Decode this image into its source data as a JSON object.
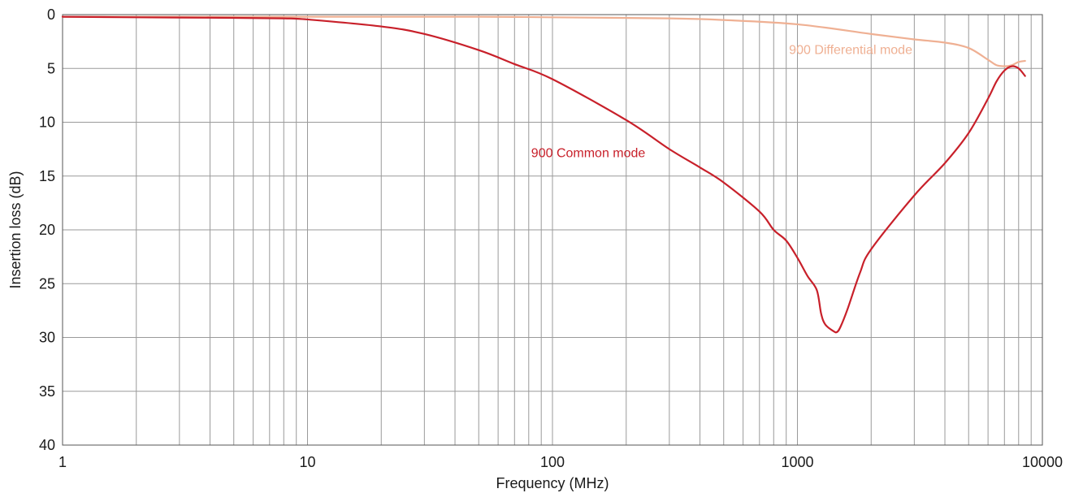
{
  "chart_data": {
    "type": "line",
    "title": "",
    "xlabel": "Frequency (MHz)",
    "ylabel": "Insertion loss (dB)",
    "x_scale": "log",
    "xlim": [
      1,
      10000
    ],
    "ylim": [
      0,
      40
    ],
    "y_inverted": true,
    "grid": true,
    "x_ticks": [
      1,
      10,
      100,
      1000,
      10000
    ],
    "x_tick_labels": [
      "1",
      "10",
      "100",
      "1000",
      "10000"
    ],
    "y_ticks": [
      0,
      5,
      10,
      15,
      20,
      25,
      30,
      35,
      40
    ],
    "y_tick_labels": [
      "0",
      "5",
      "10",
      "15",
      "20",
      "25",
      "30",
      "35",
      "40"
    ],
    "series": [
      {
        "name": "900 Common mode",
        "color": "#c8202a",
        "x": [
          1,
          2,
          5,
          8,
          10,
          20,
          30,
          50,
          70,
          100,
          200,
          300,
          400,
          500,
          700,
          800,
          900,
          1000,
          1100,
          1200,
          1250,
          1300,
          1400,
          1450,
          1500,
          1600,
          1800,
          2000,
          3000,
          4000,
          5000,
          6000,
          6500,
          7000,
          7500,
          8000,
          8500
        ],
        "y": [
          0.2,
          0.25,
          0.3,
          0.35,
          0.45,
          1.1,
          1.8,
          3.3,
          4.6,
          6.0,
          9.8,
          12.5,
          14.2,
          15.6,
          18.3,
          20.0,
          21.0,
          22.6,
          24.3,
          25.6,
          27.8,
          28.8,
          29.4,
          29.5,
          29.0,
          27.4,
          24.0,
          21.8,
          16.8,
          13.8,
          11.0,
          7.8,
          6.2,
          5.2,
          4.8,
          5.0,
          5.7
        ]
      },
      {
        "name": "900 Differential mode",
        "color": "#efb093",
        "x": [
          1,
          5,
          10,
          50,
          100,
          300,
          500,
          1000,
          2000,
          3000,
          4000,
          5000,
          6000,
          6500,
          7000,
          7500,
          8000,
          8500
        ],
        "y": [
          0.2,
          0.2,
          0.2,
          0.2,
          0.25,
          0.35,
          0.5,
          0.9,
          1.8,
          2.3,
          2.6,
          3.1,
          4.2,
          4.7,
          4.8,
          4.7,
          4.4,
          4.3
        ]
      }
    ],
    "annotations": [
      {
        "text": "900 Common mode",
        "x": 140,
        "y": 12.8,
        "color": "#c8202a"
      },
      {
        "text": "900 Differential mode",
        "x": 1650,
        "y": 3.2,
        "color": "#efb093"
      }
    ]
  }
}
